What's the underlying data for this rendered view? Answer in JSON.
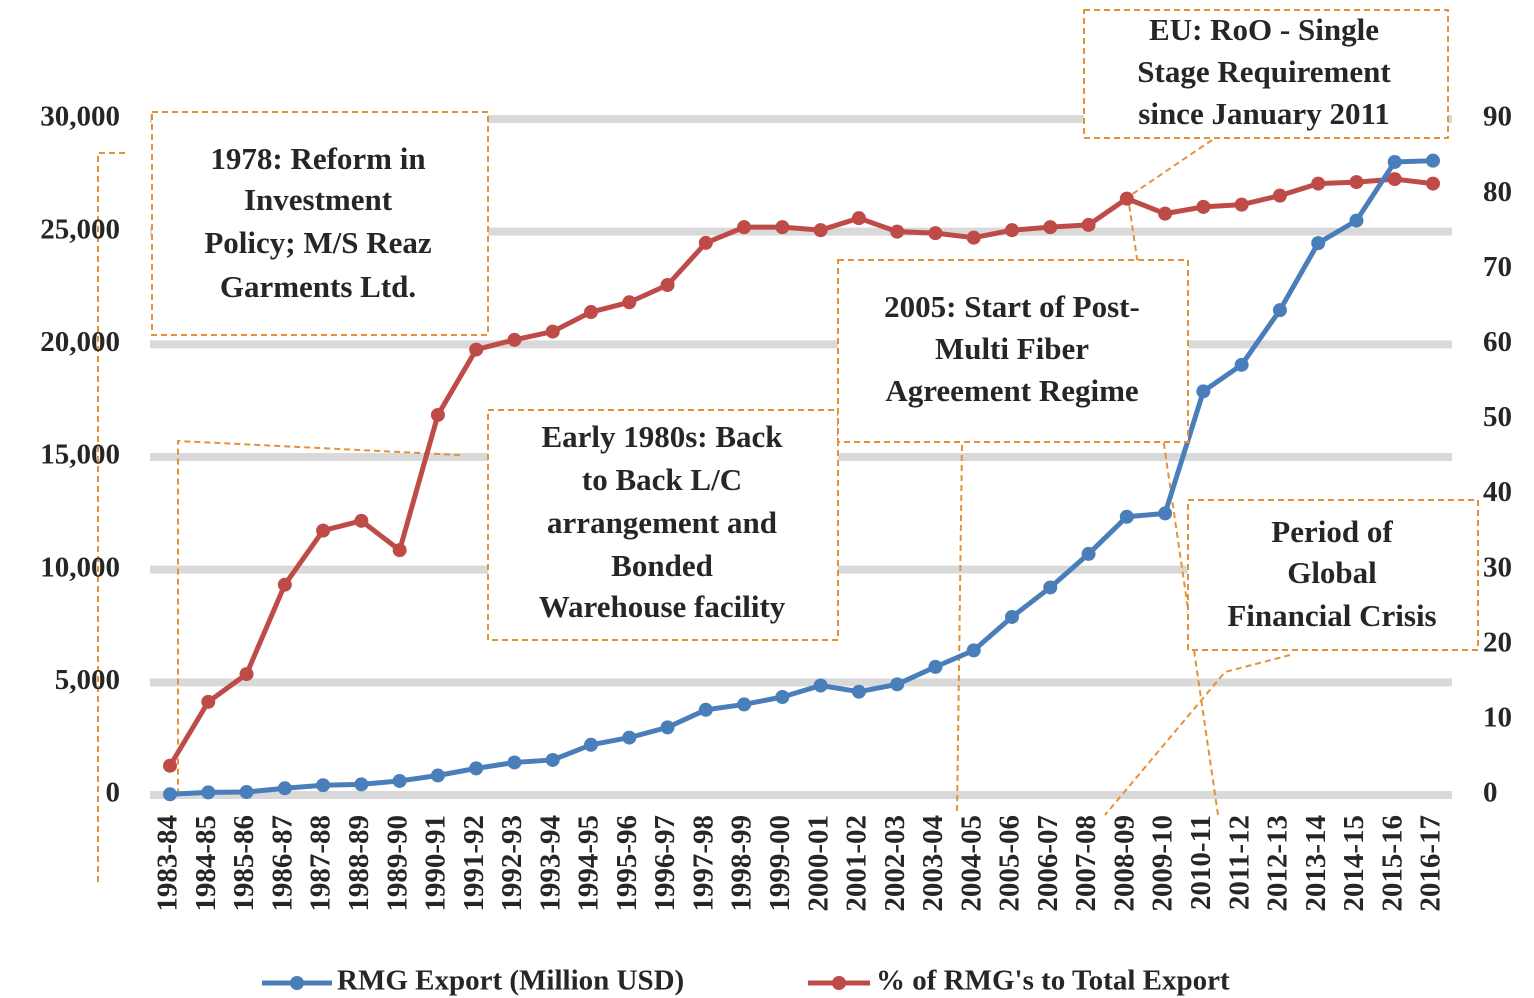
{
  "chart_data": {
    "type": "line",
    "categories": [
      "1983-84",
      "1984-85",
      "1985-86",
      "1986-87",
      "1987-88",
      "1988-89",
      "1989-90",
      "1990-91",
      "1991-92",
      "1992-93",
      "1993-94",
      "1994-95",
      "1995-96",
      "1996-97",
      "1997-98",
      "1998-99",
      "1999-00",
      "2000-01",
      "2001-02",
      "2002-03",
      "2003-04",
      "2004-05",
      "2005-06",
      "2006-07",
      "2007-08",
      "2008-09",
      "2009-10",
      "2010-11",
      "2011-12",
      "2012-13",
      "2013-14",
      "2014-15",
      "2015-16",
      "2016-17"
    ],
    "series": [
      {
        "name": "RMG Export (Million USD)",
        "color": "#4a7ebb",
        "axis": "y",
        "values": [
          32,
          116,
          131,
          299,
          434,
          471,
          624,
          866,
          1182,
          1445,
          1556,
          2228,
          2548,
          3001,
          3781,
          4020,
          4349,
          4860,
          4584,
          4912,
          5686,
          6418,
          7901,
          9211,
          10700,
          12348,
          12497,
          17914,
          19090,
          21516,
          24492,
          25491,
          28094,
          28150
        ]
      },
      {
        "name": "% of RMG's to Total Export",
        "color": "#be4b48",
        "axis": "y2",
        "values": [
          3.9,
          12.4,
          16.1,
          28,
          35.2,
          36.5,
          32.6,
          50.6,
          59.3,
          60.6,
          61.7,
          64.3,
          65.6,
          67.9,
          73.5,
          75.6,
          75.6,
          75.2,
          76.8,
          75,
          74.8,
          74.2,
          75.2,
          75.6,
          75.9,
          79.4,
          77.4,
          78.3,
          78.6,
          79.8,
          81.4,
          81.6,
          82,
          81.4
        ]
      }
    ],
    "ylim": [
      0,
      30000
    ],
    "yticks": [
      0,
      {
        "value": 5000,
        "label": "5,000"
      },
      {
        "value": 10000,
        "label": "10,000"
      },
      {
        "value": 15000,
        "label": "15,000"
      },
      {
        "value": 20000,
        "label": "20,000"
      },
      {
        "value": 25000,
        "label": "25,000"
      },
      {
        "value": 30000,
        "label": "30,000"
      }
    ],
    "y2lim": [
      0,
      90
    ],
    "y2ticks": [
      0,
      10,
      20,
      30,
      40,
      50,
      60,
      70,
      80,
      90
    ],
    "grid": true,
    "legend": "bottom",
    "annotations": [
      {
        "lines": [
          "1978: Reform in",
          "Investment",
          "Policy; M/S Reaz",
          "Garments Ltd."
        ]
      },
      {
        "lines": [
          "Early 1980s: Back",
          "to Back L/C",
          "arrangement and",
          "Bonded",
          "Warehouse facility"
        ]
      },
      {
        "lines": [
          "2005: Start of Post-",
          "Multi Fiber",
          "Agreement Regime"
        ]
      },
      {
        "lines": [
          "EU: RoO - Single",
          "Stage Requirement",
          "since January 2011"
        ]
      },
      {
        "lines": [
          "Period of",
          "Global",
          "Financial Crisis"
        ]
      }
    ]
  }
}
